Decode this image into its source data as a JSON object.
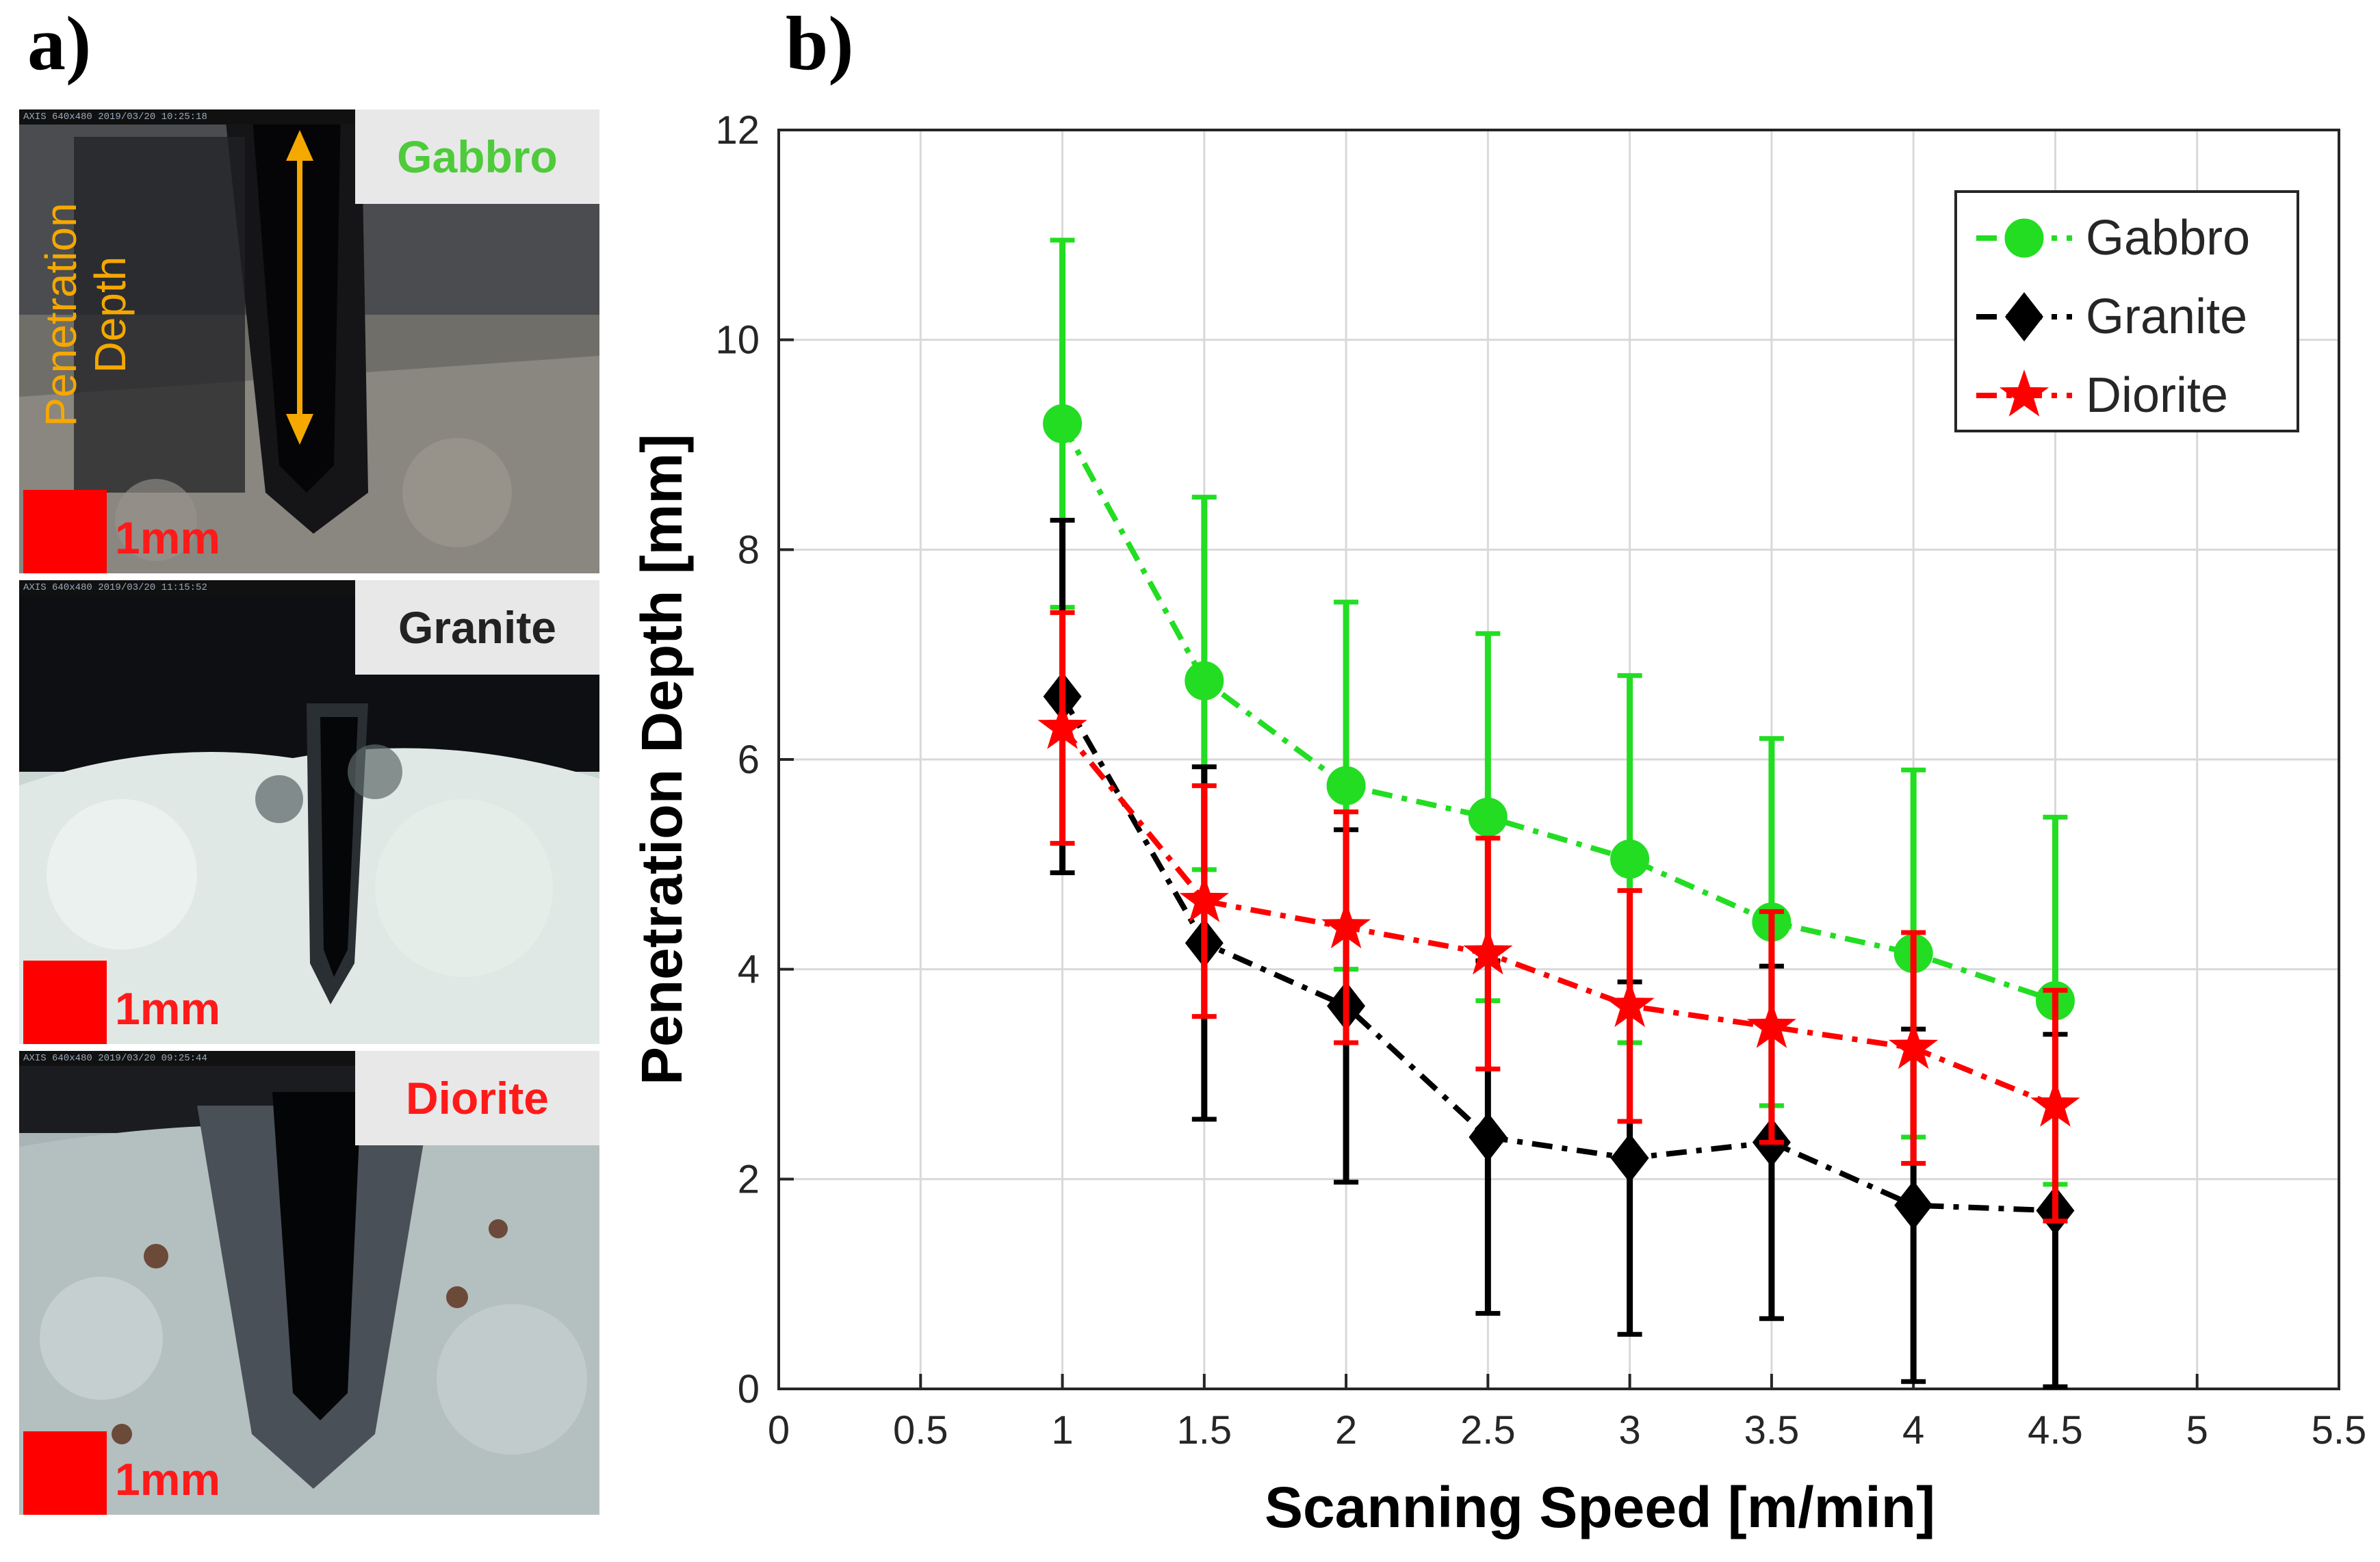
{
  "panels": {
    "a_label": "a)",
    "b_label": "b)"
  },
  "photos": [
    {
      "rock": "Gabbro",
      "color": "#4ecb3a",
      "scale": "1mm",
      "header": "AXIS  640x480  2019/03/20  10:25:18"
    },
    {
      "rock": "Granite",
      "color": "#222222",
      "scale": "1mm",
      "header": "AXIS  640x480  2019/03/20  11:15:52"
    },
    {
      "rock": "Diorite",
      "color": "#ff1a1a",
      "scale": "1mm",
      "header": "AXIS  640x480  2019/03/20  09:25:44"
    }
  ],
  "annotation": {
    "line1": "Penetration",
    "line2": "Depth",
    "color": "#f5a800"
  },
  "chart_data": {
    "type": "line",
    "xlabel": "Scanning Speed [m/min]",
    "ylabel": "Penetration Depth [mm]",
    "xlim": [
      0,
      5.5
    ],
    "ylim": [
      0,
      12
    ],
    "xticks": [
      0,
      0.5,
      1,
      1.5,
      2,
      2.5,
      3,
      3.5,
      4,
      4.5,
      5,
      5.5
    ],
    "xtick_labels": [
      "0",
      "0.5",
      "1",
      "1.5",
      "2",
      "2.5",
      "3",
      "3.5",
      "4",
      "4.5",
      "5",
      "5.5"
    ],
    "yticks": [
      0,
      2,
      4,
      6,
      8,
      10,
      12
    ],
    "ytick_labels": [
      "0",
      "2",
      "4",
      "6",
      "8",
      "10",
      "12"
    ],
    "grid": true,
    "legend_position": "top-right",
    "x": [
      1,
      1.5,
      2,
      2.5,
      3,
      3.5,
      4,
      4.5
    ],
    "series": [
      {
        "name": "Gabbro",
        "color": "#22dd22",
        "marker": "circle",
        "values": [
          9.2,
          6.75,
          5.75,
          5.45,
          5.05,
          4.45,
          4.15,
          3.7
        ],
        "err_low": [
          7.45,
          4.95,
          4.0,
          3.7,
          3.3,
          2.7,
          2.4,
          1.95
        ],
        "err_high": [
          10.95,
          8.5,
          7.5,
          7.2,
          6.8,
          6.2,
          5.9,
          5.45
        ]
      },
      {
        "name": "Granite",
        "color": "#000000",
        "marker": "diamond",
        "values": [
          6.6,
          4.25,
          3.65,
          2.4,
          2.2,
          2.35,
          1.75,
          1.7
        ],
        "err_low": [
          4.92,
          2.57,
          1.97,
          0.72,
          0.52,
          0.67,
          0.07,
          0.02
        ],
        "err_high": [
          8.28,
          5.93,
          5.33,
          4.08,
          3.88,
          4.03,
          3.43,
          3.38
        ]
      },
      {
        "name": "Diorite",
        "color": "#ff0000",
        "marker": "star",
        "values": [
          6.3,
          4.65,
          4.4,
          4.15,
          3.65,
          3.45,
          3.25,
          2.7
        ],
        "err_low": [
          5.2,
          3.55,
          3.3,
          3.05,
          2.55,
          2.35,
          2.15,
          1.6
        ],
        "err_high": [
          7.4,
          5.75,
          5.5,
          5.25,
          4.75,
          4.55,
          4.35,
          3.8
        ]
      }
    ]
  }
}
